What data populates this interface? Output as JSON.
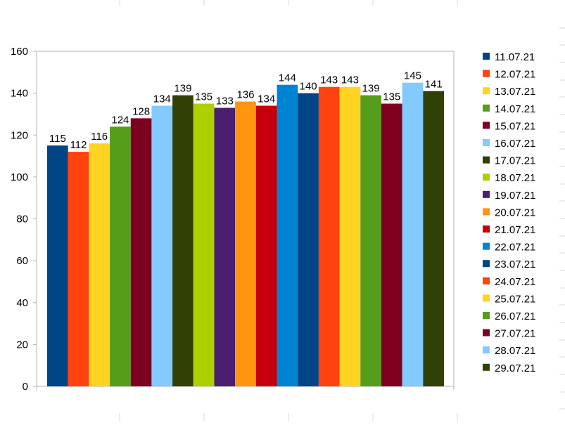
{
  "chart_data": {
    "type": "bar",
    "title": "",
    "xlabel": "",
    "ylabel": "",
    "ylim": [
      0,
      160
    ],
    "yticks": [
      "0",
      "20",
      "40",
      "60",
      "80",
      "100",
      "120",
      "140",
      "160"
    ],
    "grid": false,
    "legend_position": "right",
    "series": [
      {
        "name": "11.07.21",
        "value": 115,
        "label": "115",
        "color": "#004586"
      },
      {
        "name": "12.07.21",
        "value": 112,
        "label": "112",
        "color": "#ff420e"
      },
      {
        "name": "13.07.21",
        "value": 116,
        "label": "116",
        "color": "#ffd320"
      },
      {
        "name": "14.07.21",
        "value": 124,
        "label": "124",
        "color": "#579d1c"
      },
      {
        "name": "15.07.21",
        "value": 128,
        "label": "128",
        "color": "#7e0021"
      },
      {
        "name": "16.07.21",
        "value": 134,
        "label": "134",
        "color": "#83caff"
      },
      {
        "name": "17.07.21",
        "value": 139,
        "label": "139",
        "color": "#314004"
      },
      {
        "name": "18.07.21",
        "value": 135,
        "label": "135",
        "color": "#aecf00"
      },
      {
        "name": "19.07.21",
        "value": 133,
        "label": "133",
        "color": "#4b1f6f"
      },
      {
        "name": "20.07.21",
        "value": 136,
        "label": "136",
        "color": "#ff950e"
      },
      {
        "name": "21.07.21",
        "value": 134,
        "label": "134",
        "color": "#c5000b"
      },
      {
        "name": "22.07.21",
        "value": 144,
        "label": "144",
        "color": "#0084d1"
      },
      {
        "name": "23.07.21",
        "value": 140,
        "label": "140",
        "color": "#004586"
      },
      {
        "name": "24.07.21",
        "value": 143,
        "label": "143",
        "color": "#ff420e"
      },
      {
        "name": "25.07.21",
        "value": 143,
        "label": "143",
        "color": "#ffd320"
      },
      {
        "name": "26.07.21",
        "value": 139,
        "label": "139",
        "color": "#579d1c"
      },
      {
        "name": "27.07.21",
        "value": 135,
        "label": "135",
        "color": "#7e0021"
      },
      {
        "name": "28.07.21",
        "value": 145,
        "label": "145",
        "color": "#83caff"
      },
      {
        "name": "29.07.21",
        "value": 141,
        "label": "141",
        "color": "#314004"
      }
    ]
  }
}
